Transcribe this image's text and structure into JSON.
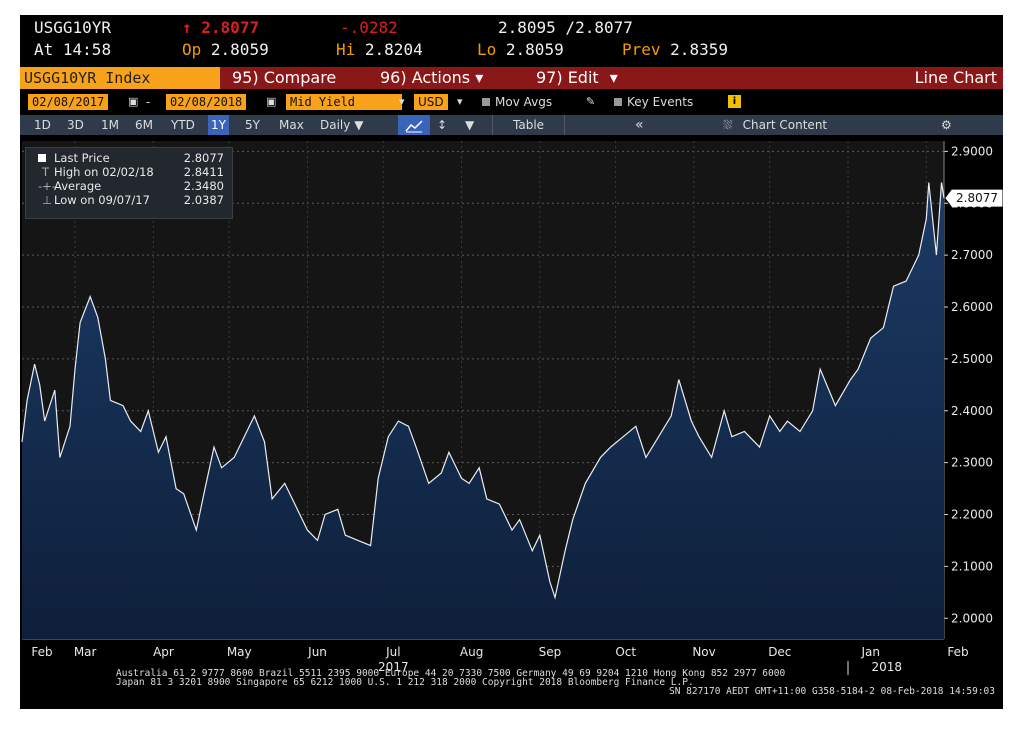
{
  "header": {
    "symbol": "USGG10YR",
    "last_arrow": "↑",
    "last": "2.8077",
    "change": "-.0282",
    "bid_ask": "2.8095 /2.8077",
    "time_label": "At",
    "time": "14:58",
    "open_label": "Op",
    "open": "2.8059",
    "high_label": "Hi",
    "high": "2.8204",
    "low_label": "Lo",
    "low": "2.8059",
    "prev_label": "Prev",
    "prev": "2.8359"
  },
  "command_bar": {
    "ticker": "USGG10YR Index",
    "compare": "95) Compare",
    "actions": "96) Actions",
    "edit": "97) Edit",
    "view": "Line Chart"
  },
  "controls": {
    "start_date": "02/08/2017",
    "dash": "-",
    "end_date": "02/08/2018",
    "field": "Mid Yield",
    "currency": "USD",
    "mov_avgs": "Mov Avgs",
    "key_events": "Key Events",
    "info": "i"
  },
  "tabs": {
    "periods": [
      "1D",
      "3D",
      "1M",
      "6M",
      "YTD",
      "1Y",
      "5Y",
      "Max"
    ],
    "active": "1Y",
    "frequency": "Daily",
    "table": "Table",
    "chart_content": "Chart Content",
    "collapse": "«",
    "settings": "⚙"
  },
  "legend": {
    "last_price_label": "Last Price",
    "last_price": "2.8077",
    "high_label": "High on 02/02/18",
    "high": "2.8411",
    "average_label": "Average",
    "average": "2.3480",
    "low_label": "Low on 09/07/17",
    "low": "2.0387"
  },
  "footer": {
    "line1": "Australia 61 2 9777 8600 Brazil 5511 2395 9000 Europe 44 20 7330 7500 Germany 49 69 9204 1210 Hong Kong 852 2977 6000",
    "line2": "Japan 81 3 3201 8900       Singapore 65 6212 1000       U.S. 1 212 318 2000           Copyright 2018 Bloomberg Finance L.P.",
    "line3": "SN 827170 AEDT  GMT+11:00 G358-5184-2 08-Feb-2018 14:59:03"
  },
  "colors": {
    "terminal_bg": "#000000",
    "accent_orange": "#f7a21a",
    "command_red": "#8a1818",
    "line": "#e8ecf2",
    "area_fill": "#1c3b66"
  },
  "chart_data": {
    "type": "area",
    "title": "",
    "ylim": [
      1.96,
      2.92
    ],
    "yticks": [
      "2.0000",
      "2.1000",
      "2.2000",
      "2.3000",
      "2.4000",
      "2.5000",
      "2.6000",
      "2.7000",
      "2.8000",
      "2.9000"
    ],
    "xlabels": [
      "Feb",
      "Mar",
      "Apr",
      "May",
      "Jun",
      "Jul",
      "Aug",
      "Sep",
      "Oct",
      "Nov",
      "Dec",
      "Jan",
      "Feb"
    ],
    "year_labels": [
      {
        "after_month": "Jul",
        "text": "2017"
      },
      {
        "after_month": "Jan",
        "text": "2018"
      }
    ],
    "last_value_label": "2.8077",
    "x": [
      "2017-02-08",
      "2017-02-10",
      "2017-02-13",
      "2017-02-15",
      "2017-02-17",
      "2017-02-21",
      "2017-02-23",
      "2017-02-27",
      "2017-03-01",
      "2017-03-03",
      "2017-03-07",
      "2017-03-10",
      "2017-03-13",
      "2017-03-15",
      "2017-03-20",
      "2017-03-23",
      "2017-03-27",
      "2017-03-30",
      "2017-04-03",
      "2017-04-06",
      "2017-04-10",
      "2017-04-13",
      "2017-04-18",
      "2017-04-21",
      "2017-04-25",
      "2017-04-28",
      "2017-05-03",
      "2017-05-08",
      "2017-05-11",
      "2017-05-15",
      "2017-05-18",
      "2017-05-23",
      "2017-05-26",
      "2017-06-01",
      "2017-06-05",
      "2017-06-08",
      "2017-06-13",
      "2017-06-16",
      "2017-06-21",
      "2017-06-26",
      "2017-06-29",
      "2017-07-03",
      "2017-07-07",
      "2017-07-11",
      "2017-07-14",
      "2017-07-19",
      "2017-07-24",
      "2017-07-27",
      "2017-08-01",
      "2017-08-04",
      "2017-08-08",
      "2017-08-11",
      "2017-08-16",
      "2017-08-21",
      "2017-08-24",
      "2017-08-29",
      "2017-09-01",
      "2017-09-05",
      "2017-09-07",
      "2017-09-11",
      "2017-09-14",
      "2017-09-19",
      "2017-09-25",
      "2017-09-29",
      "2017-10-04",
      "2017-10-09",
      "2017-10-13",
      "2017-10-18",
      "2017-10-23",
      "2017-10-26",
      "2017-10-31",
      "2017-11-03",
      "2017-11-08",
      "2017-11-13",
      "2017-11-16",
      "2017-11-21",
      "2017-11-27",
      "2017-12-01",
      "2017-12-05",
      "2017-12-08",
      "2017-12-13",
      "2017-12-18",
      "2017-12-21",
      "2017-12-27",
      "2018-01-02",
      "2018-01-05",
      "2018-01-10",
      "2018-01-15",
      "2018-01-19",
      "2018-01-24",
      "2018-01-29",
      "2018-02-01",
      "2018-02-02",
      "2018-02-05",
      "2018-02-07",
      "2018-02-08"
    ],
    "series": [
      {
        "values": [
          2.34,
          2.42,
          2.49,
          2.45,
          2.38,
          2.44,
          2.31,
          2.37,
          2.48,
          2.57,
          2.62,
          2.58,
          2.5,
          2.42,
          2.41,
          2.38,
          2.36,
          2.4,
          2.32,
          2.35,
          2.25,
          2.24,
          2.17,
          2.24,
          2.33,
          2.29,
          2.31,
          2.36,
          2.39,
          2.34,
          2.23,
          2.26,
          2.23,
          2.17,
          2.15,
          2.2,
          2.21,
          2.16,
          2.15,
          2.14,
          2.27,
          2.35,
          2.38,
          2.37,
          2.33,
          2.26,
          2.28,
          2.32,
          2.27,
          2.26,
          2.29,
          2.23,
          2.22,
          2.17,
          2.19,
          2.13,
          2.16,
          2.07,
          2.04,
          2.13,
          2.19,
          2.26,
          2.31,
          2.33,
          2.35,
          2.37,
          2.31,
          2.35,
          2.39,
          2.46,
          2.38,
          2.35,
          2.31,
          2.4,
          2.35,
          2.36,
          2.33,
          2.39,
          2.36,
          2.38,
          2.36,
          2.4,
          2.48,
          2.41,
          2.46,
          2.48,
          2.54,
          2.56,
          2.64,
          2.65,
          2.7,
          2.77,
          2.84,
          2.7,
          2.84,
          2.81
        ]
      }
    ]
  }
}
